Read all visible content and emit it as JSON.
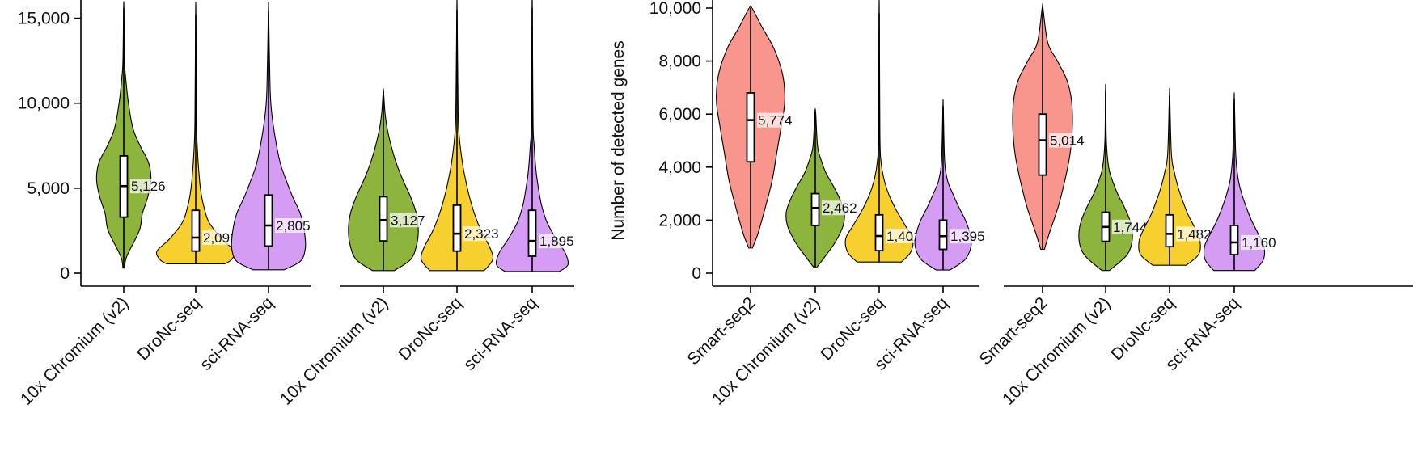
{
  "colors": {
    "Smart-seq2": "#f8958c",
    "10x Chromium (v2)": "#8db43c",
    "DroNc-seq": "#f6d02e",
    "sci-RNA-seq": "#d59cf4"
  },
  "chart_data": [
    {
      "type": "violin",
      "ylabel": "",
      "ylim": [
        0,
        15600
      ],
      "yticks": [
        0,
        5000,
        10000,
        15000
      ],
      "ytick_labels": [
        "0",
        "5,000",
        "10,000",
        "15,000"
      ],
      "categories": [
        "10x Chromium (v2)",
        "DroNc-seq",
        "sci-RNA-seq"
      ],
      "series": [
        {
          "category": "10x Chromium (v2)",
          "median": 5126,
          "median_label": "5,126",
          "q1": 3300,
          "q3": 6900,
          "min": 300,
          "max": 15600,
          "profile": [
            [
              300,
              0.02
            ],
            [
              1000,
              0.08
            ],
            [
              2500,
              0.4
            ],
            [
              3500,
              0.48
            ],
            [
              4500,
              0.62
            ],
            [
              5500,
              0.7
            ],
            [
              6500,
              0.64
            ],
            [
              7500,
              0.42
            ],
            [
              8500,
              0.24
            ],
            [
              10000,
              0.12
            ],
            [
              11500,
              0.05
            ],
            [
              12500,
              0.02
            ],
            [
              15600,
              0.005
            ]
          ]
        },
        {
          "category": "DroNc-seq",
          "median": 2092,
          "median_label": "2,092",
          "q1": 1300,
          "q3": 3700,
          "min": 550,
          "max": 15200,
          "profile": [
            [
              550,
              0.75
            ],
            [
              800,
              0.92
            ],
            [
              1300,
              1.0
            ],
            [
              2000,
              0.68
            ],
            [
              3000,
              0.34
            ],
            [
              4000,
              0.2
            ],
            [
              5000,
              0.12
            ],
            [
              6000,
              0.08
            ],
            [
              7000,
              0.05
            ],
            [
              9000,
              0.02
            ],
            [
              15200,
              0.004
            ]
          ]
        },
        {
          "category": "sci-RNA-seq",
          "median": 2805,
          "median_label": "2,805",
          "q1": 1600,
          "q3": 4600,
          "min": 200,
          "max": 15400,
          "profile": [
            [
              200,
              0.4
            ],
            [
              700,
              0.82
            ],
            [
              1500,
              0.95
            ],
            [
              2500,
              0.92
            ],
            [
              3500,
              0.82
            ],
            [
              4500,
              0.62
            ],
            [
              5500,
              0.45
            ],
            [
              6500,
              0.3
            ],
            [
              8000,
              0.17
            ],
            [
              9500,
              0.08
            ],
            [
              11000,
              0.04
            ],
            [
              15400,
              0.004
            ]
          ]
        }
      ]
    },
    {
      "type": "violin",
      "ylabel": "",
      "ylim": [
        0,
        15600
      ],
      "yticks": [],
      "ytick_labels": [],
      "categories": [
        "10x Chromium (v2)",
        "DroNc-seq",
        "sci-RNA-seq"
      ],
      "series": [
        {
          "category": "10x Chromium (v2)",
          "median": 3127,
          "median_label": "3,127",
          "q1": 1900,
          "q3": 4500,
          "min": 150,
          "max": 10700,
          "profile": [
            [
              150,
              0.28
            ],
            [
              800,
              0.7
            ],
            [
              1600,
              0.85
            ],
            [
              2500,
              0.9
            ],
            [
              3500,
              0.85
            ],
            [
              4500,
              0.7
            ],
            [
              5500,
              0.5
            ],
            [
              6500,
              0.33
            ],
            [
              7500,
              0.2
            ],
            [
              8500,
              0.1
            ],
            [
              9500,
              0.04
            ],
            [
              10700,
              0.005
            ]
          ]
        },
        {
          "category": "DroNc-seq",
          "median": 2323,
          "median_label": "2,323",
          "q1": 1300,
          "q3": 4000,
          "min": 150,
          "max": 15500,
          "profile": [
            [
              150,
              0.7
            ],
            [
              800,
              0.92
            ],
            [
              1500,
              0.85
            ],
            [
              2500,
              0.62
            ],
            [
              3500,
              0.45
            ],
            [
              4500,
              0.32
            ],
            [
              5500,
              0.22
            ],
            [
              6500,
              0.14
            ],
            [
              8000,
              0.06
            ],
            [
              9500,
              0.03
            ],
            [
              15500,
              0.004
            ]
          ]
        },
        {
          "category": "sci-RNA-seq",
          "median": 1895,
          "median_label": "1,895",
          "q1": 1000,
          "q3": 3700,
          "min": 100,
          "max": 15600,
          "profile": [
            [
              100,
              0.7
            ],
            [
              500,
              0.92
            ],
            [
              1200,
              0.85
            ],
            [
              2000,
              0.62
            ],
            [
              3000,
              0.38
            ],
            [
              4000,
              0.24
            ],
            [
              5000,
              0.16
            ],
            [
              6000,
              0.1
            ],
            [
              7500,
              0.05
            ],
            [
              9000,
              0.02
            ],
            [
              15600,
              0.004
            ]
          ]
        }
      ]
    },
    {
      "type": "violin",
      "ylabel": "Number of detected genes",
      "ylim": [
        0,
        10000
      ],
      "yticks": [
        0,
        2000,
        4000,
        6000,
        8000,
        10000
      ],
      "ytick_labels": [
        "0",
        "2,000",
        "4,000",
        "6,000",
        "8,000",
        "10,000"
      ],
      "categories": [
        "Smart-seq2",
        "10x Chromium (v2)",
        "DroNc-seq",
        "sci-RNA-seq"
      ],
      "series": [
        {
          "category": "Smart-seq2",
          "median": 5774,
          "median_label": "5,774",
          "q1": 4200,
          "q3": 6800,
          "min": 950,
          "max": 10000,
          "profile": [
            [
              950,
              0.05
            ],
            [
              1500,
              0.2
            ],
            [
              2500,
              0.4
            ],
            [
              3500,
              0.58
            ],
            [
              4500,
              0.7
            ],
            [
              5500,
              0.82
            ],
            [
              6500,
              0.92
            ],
            [
              7500,
              0.86
            ],
            [
              8500,
              0.62
            ],
            [
              9300,
              0.3
            ],
            [
              10000,
              0.04
            ]
          ]
        },
        {
          "category": "10x Chromium (v2)",
          "median": 2462,
          "median_label": "2,462",
          "q1": 1800,
          "q3": 3000,
          "min": 200,
          "max": 6050,
          "profile": [
            [
              200,
              0.03
            ],
            [
              700,
              0.3
            ],
            [
              1200,
              0.55
            ],
            [
              1800,
              0.75
            ],
            [
              2300,
              0.78
            ],
            [
              2800,
              0.66
            ],
            [
              3300,
              0.48
            ],
            [
              3800,
              0.28
            ],
            [
              4300,
              0.15
            ],
            [
              4800,
              0.06
            ],
            [
              6050,
              0.01
            ]
          ]
        },
        {
          "category": "DroNc-seq",
          "median": 1401,
          "median_label": "1,401",
          "q1": 850,
          "q3": 2200,
          "min": 420,
          "max": 9800,
          "profile": [
            [
              420,
              0.6
            ],
            [
              800,
              0.85
            ],
            [
              1300,
              0.9
            ],
            [
              1800,
              0.7
            ],
            [
              2400,
              0.45
            ],
            [
              3000,
              0.25
            ],
            [
              3600,
              0.12
            ],
            [
              4200,
              0.05
            ],
            [
              5200,
              0.02
            ],
            [
              9800,
              0.004
            ]
          ]
        },
        {
          "category": "sci-RNA-seq",
          "median": 1395,
          "median_label": "1,395",
          "q1": 900,
          "q3": 2000,
          "min": 120,
          "max": 6300,
          "profile": [
            [
              120,
              0.18
            ],
            [
              500,
              0.58
            ],
            [
              1000,
              0.75
            ],
            [
              1500,
              0.72
            ],
            [
              2000,
              0.6
            ],
            [
              2500,
              0.42
            ],
            [
              3000,
              0.26
            ],
            [
              3500,
              0.12
            ],
            [
              4300,
              0.04
            ],
            [
              6300,
              0.005
            ]
          ]
        }
      ]
    },
    {
      "type": "violin",
      "ylabel": "",
      "ylim": [
        0,
        10000
      ],
      "yticks": [],
      "ytick_labels": [],
      "categories": [
        "Smart-seq2",
        "10x Chromium (v2)",
        "DroNc-seq",
        "sci-RNA-seq"
      ],
      "series": [
        {
          "category": "Smart-seq2",
          "median": 5014,
          "median_label": "5,014",
          "q1": 3700,
          "q3": 6000,
          "min": 900,
          "max": 10000,
          "profile": [
            [
              900,
              0.05
            ],
            [
              1500,
              0.18
            ],
            [
              2500,
              0.42
            ],
            [
              3500,
              0.6
            ],
            [
              4500,
              0.74
            ],
            [
              5500,
              0.8
            ],
            [
              6500,
              0.78
            ],
            [
              7300,
              0.65
            ],
            [
              8000,
              0.4
            ],
            [
              8700,
              0.14
            ],
            [
              10000,
              0.01
            ]
          ]
        },
        {
          "category": "10x Chromium (v2)",
          "median": 1744,
          "median_label": "1,744",
          "q1": 1200,
          "q3": 2300,
          "min": 100,
          "max": 6900,
          "profile": [
            [
              100,
              0.1
            ],
            [
              600,
              0.52
            ],
            [
              1000,
              0.68
            ],
            [
              1500,
              0.72
            ],
            [
              2000,
              0.65
            ],
            [
              2500,
              0.5
            ],
            [
              3000,
              0.32
            ],
            [
              3500,
              0.18
            ],
            [
              4000,
              0.08
            ],
            [
              5000,
              0.02
            ],
            [
              6900,
              0.005
            ]
          ]
        },
        {
          "category": "DroNc-seq",
          "median": 1482,
          "median_label": "1,482",
          "q1": 1000,
          "q3": 2200,
          "min": 300,
          "max": 6700,
          "profile": [
            [
              300,
              0.45
            ],
            [
              700,
              0.78
            ],
            [
              1200,
              0.82
            ],
            [
              1700,
              0.68
            ],
            [
              2200,
              0.5
            ],
            [
              2700,
              0.36
            ],
            [
              3200,
              0.24
            ],
            [
              3800,
              0.13
            ],
            [
              4500,
              0.05
            ],
            [
              6700,
              0.005
            ]
          ]
        },
        {
          "category": "sci-RNA-seq",
          "median": 1160,
          "median_label": "1,160",
          "q1": 700,
          "q3": 1800,
          "min": 100,
          "max": 6550,
          "profile": [
            [
              100,
              0.55
            ],
            [
              500,
              0.78
            ],
            [
              1000,
              0.8
            ],
            [
              1500,
              0.64
            ],
            [
              2000,
              0.46
            ],
            [
              2500,
              0.32
            ],
            [
              3000,
              0.2
            ],
            [
              3600,
              0.1
            ],
            [
              4500,
              0.04
            ],
            [
              6550,
              0.004
            ]
          ]
        }
      ]
    }
  ]
}
